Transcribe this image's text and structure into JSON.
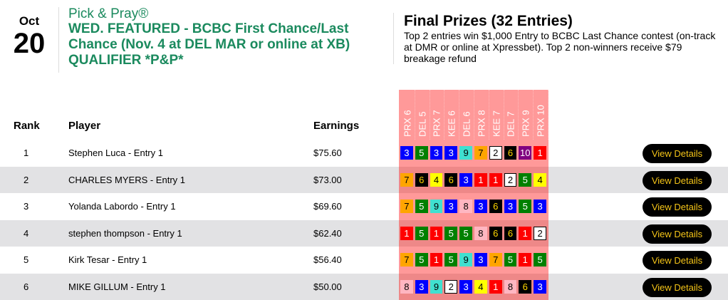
{
  "date": {
    "month": "Oct",
    "day": "20"
  },
  "contest": {
    "brand": "Pick & Pray®",
    "name": "WED. FEATURED - BCBC First Chance/Last Chance (Nov. 4 at DEL MAR or online at XB) QUALIFIER *P&P*"
  },
  "prizes": {
    "title": "Final Prizes (32 Entries)",
    "description": "Top 2 entries win $1,000 Entry to BCBC Last Chance contest (on-track at DMR or online at Xpressbet). Top 2 non-winners receive $79 breakage refund"
  },
  "columns": {
    "rank": "Rank",
    "player": "Player",
    "earnings": "Earnings"
  },
  "races": [
    "PRX 6",
    "DEL 5",
    "PRX 7",
    "KEE 6",
    "DEL 6",
    "PRX 8",
    "KEE 7",
    "DEL 7",
    "PRX 9",
    "PRX 10"
  ],
  "saddle_colors": {
    "1": [
      "#ff0000",
      "#ffffff"
    ],
    "2": [
      "#ffffff",
      "#000000"
    ],
    "3": [
      "#0000ff",
      "#ffffff"
    ],
    "4": [
      "#ffff00",
      "#000000"
    ],
    "5": [
      "#008000",
      "#ffffff"
    ],
    "6": [
      "#000000",
      "#ffd700"
    ],
    "7": [
      "#ffa500",
      "#000000"
    ],
    "8": [
      "#ffb6c1",
      "#000000"
    ],
    "9": [
      "#40e0d0",
      "#000000"
    ],
    "10": [
      "#800080",
      "#ffffff"
    ]
  },
  "button_label": "View Details",
  "rows": [
    {
      "rank": "1",
      "player": "Stephen Luca - Entry 1",
      "earnings": "$75.60",
      "picks": [
        3,
        5,
        3,
        3,
        9,
        7,
        2,
        6,
        10,
        1
      ]
    },
    {
      "rank": "2",
      "player": "CHARLES MYERS - Entry 1",
      "earnings": "$73.00",
      "picks": [
        7,
        6,
        4,
        6,
        3,
        1,
        1,
        2,
        5,
        4
      ]
    },
    {
      "rank": "3",
      "player": "Yolanda Labordo - Entry 1",
      "earnings": "$69.60",
      "picks": [
        7,
        5,
        9,
        3,
        8,
        3,
        6,
        3,
        5,
        3
      ]
    },
    {
      "rank": "4",
      "player": "stephen thompson - Entry 1",
      "earnings": "$62.40",
      "picks": [
        1,
        5,
        1,
        5,
        5,
        8,
        6,
        6,
        1,
        2
      ]
    },
    {
      "rank": "5",
      "player": "Kirk Tesar - Entry 1",
      "earnings": "$56.40",
      "picks": [
        7,
        5,
        1,
        5,
        9,
        3,
        7,
        5,
        1,
        5
      ]
    },
    {
      "rank": "6",
      "player": "MIKE GILLUM - Entry 1",
      "earnings": "$50.00",
      "picks": [
        8,
        3,
        9,
        2,
        3,
        4,
        1,
        8,
        6,
        3
      ]
    }
  ]
}
